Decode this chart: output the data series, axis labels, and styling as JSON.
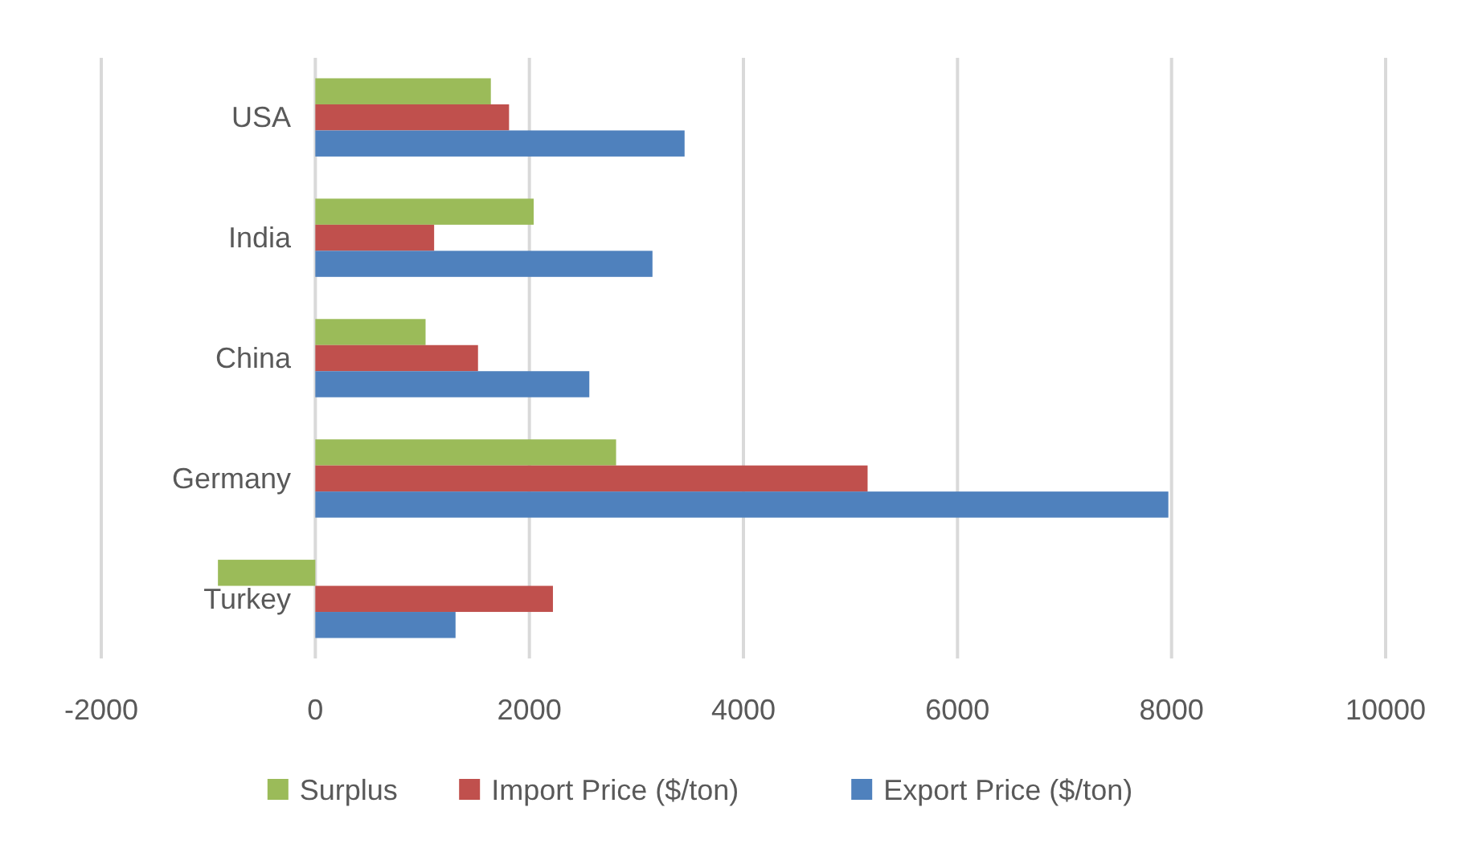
{
  "chart_data": {
    "type": "bar",
    "orientation": "horizontal",
    "categories": [
      "USA",
      "India",
      "China",
      "Germany",
      "Turkey"
    ],
    "series": [
      {
        "name": "Surplus",
        "color": "#9bbb59",
        "values": [
          1640,
          2040,
          1030,
          2810,
          -910
        ]
      },
      {
        "name": "Import Price ($/ton)",
        "color": "#c0504d",
        "values": [
          1810,
          1110,
          1520,
          5160,
          2220
        ]
      },
      {
        "name": "Export Price ($/ton)",
        "color": "#4f81bd",
        "values": [
          3450,
          3150,
          2560,
          7970,
          1310
        ]
      }
    ],
    "xlim": [
      -2000,
      10000
    ],
    "xticks": [
      -2000,
      0,
      2000,
      4000,
      6000,
      8000,
      10000
    ],
    "grid": "x",
    "legend": "bottom"
  }
}
